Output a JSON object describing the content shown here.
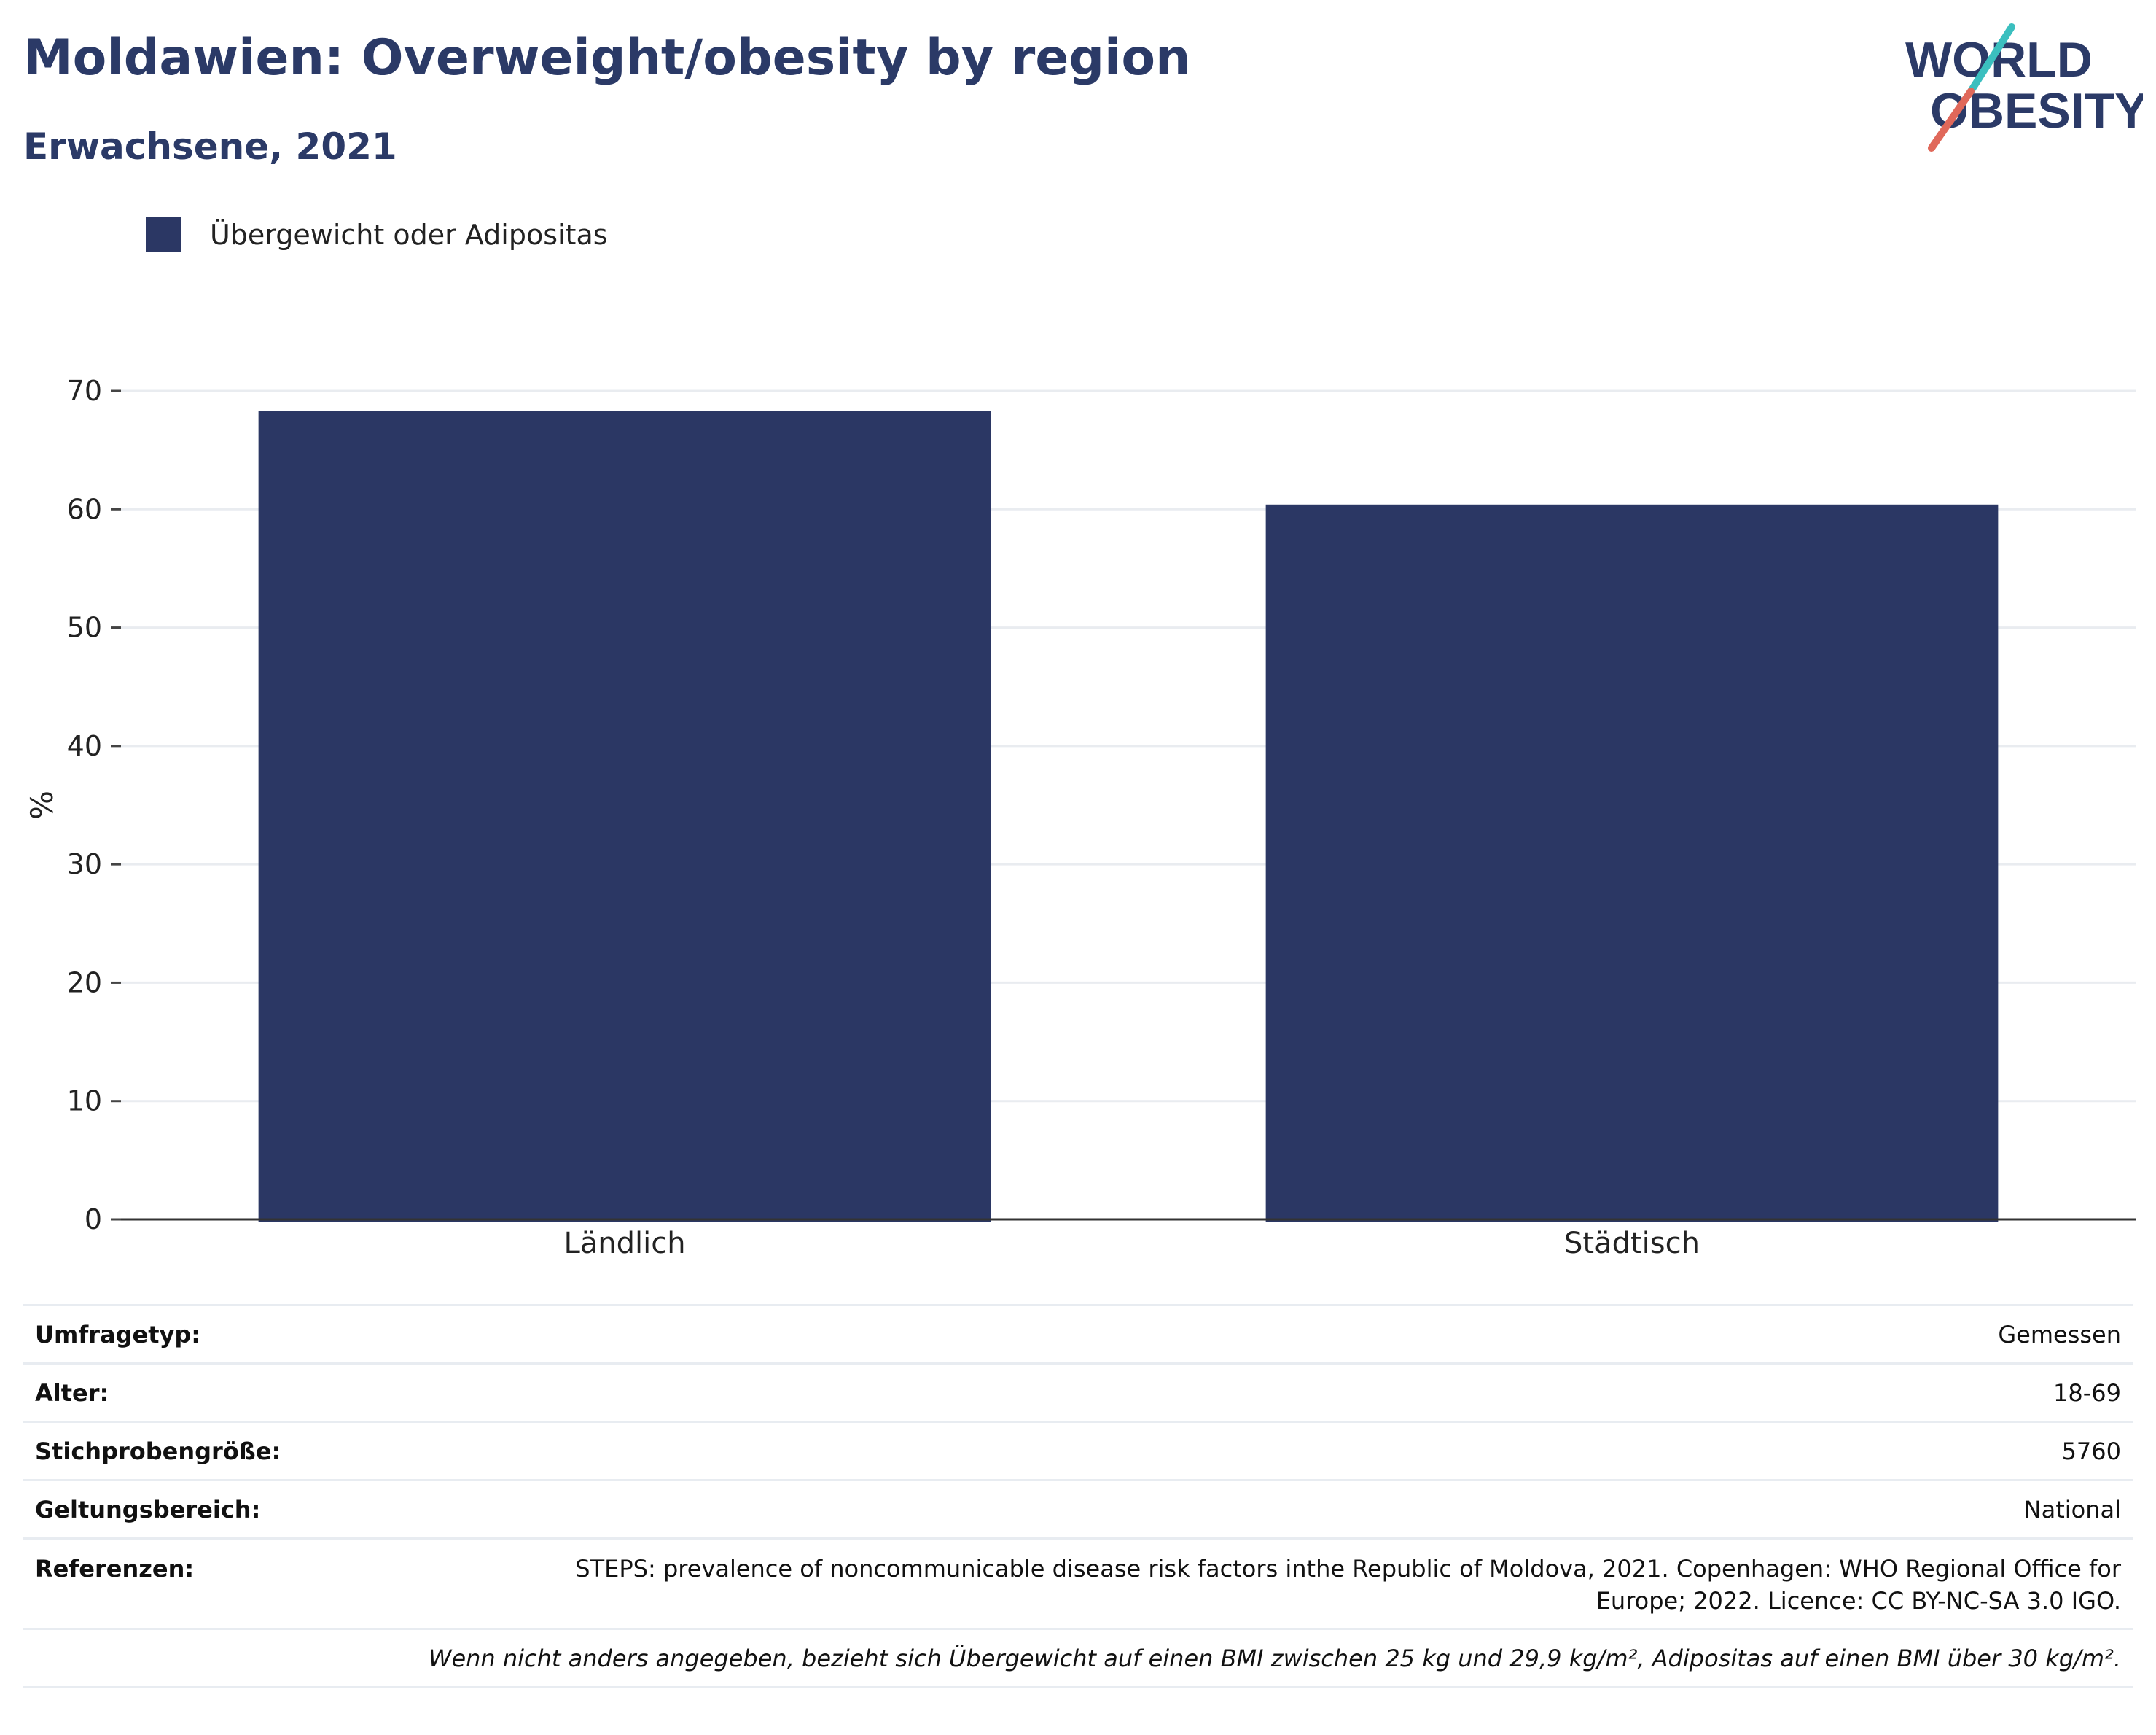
{
  "header": {
    "title": "Moldawien: Overweight/obesity by region",
    "subtitle": "Erwachsene, 2021"
  },
  "logo": {
    "line1": "WORLD",
    "line2": "OBESITY",
    "colors": {
      "text": "#2b3a67",
      "slash_top": "#3bbfbf",
      "slash_bottom": "#e0685a"
    }
  },
  "legend": {
    "label": "Übergewicht oder Adipositas",
    "color": "#2b3764"
  },
  "chart_data": {
    "type": "bar",
    "categories": [
      "Ländlich",
      "Städtisch"
    ],
    "series": [
      {
        "name": "Übergewicht oder Adipositas",
        "values": [
          68.3,
          60.4
        ],
        "color": "#2b3764"
      }
    ],
    "ylabel": "%",
    "xlabel": "",
    "ylim": [
      0,
      70
    ],
    "yticks": [
      0,
      10,
      20,
      30,
      40,
      50,
      60,
      70
    ],
    "grid": true,
    "legend_position": "top-left"
  },
  "info": {
    "rows": [
      {
        "key": "Umfragetyp:",
        "value": "Gemessen"
      },
      {
        "key": "Alter:",
        "value": "18-69"
      },
      {
        "key": "Stichprobengröße:",
        "value": "5760"
      },
      {
        "key": "Geltungsbereich:",
        "value": "National"
      }
    ],
    "reference_key": "Referenzen:",
    "reference_line1": "STEPS: prevalence of noncommunicable disease risk factors inthe Republic of Moldova, 2021. Copenhagen: WHO Regional Office for",
    "reference_line2": "Europe; 2022. Licence: CC BY-NC-SA 3.0 IGO.",
    "note": "Wenn nicht anders angegeben, bezieht sich Übergewicht auf einen BMI zwischen 25 kg und 29,9 kg/m², Adipositas auf einen BMI über 30 kg/m²."
  }
}
